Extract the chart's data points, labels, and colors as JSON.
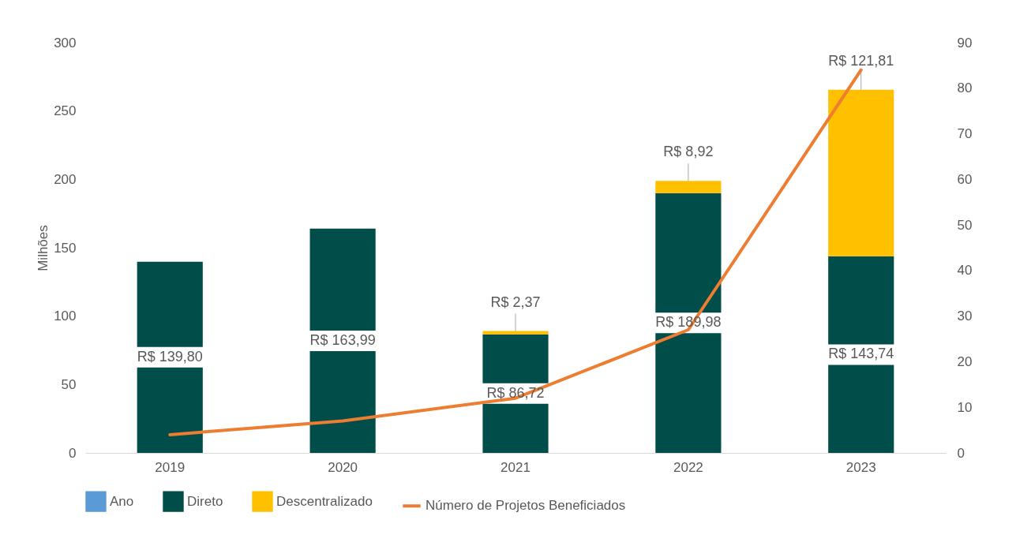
{
  "chart_data": {
    "type": "bar",
    "stacked": true,
    "ylabel": "Milhões",
    "categories": [
      "2019",
      "2020",
      "2021",
      "2022",
      "2023"
    ],
    "ylim": [
      0,
      300
    ],
    "yticks": [
      0,
      50,
      100,
      150,
      200,
      250,
      300
    ],
    "y2lim": [
      0,
      90
    ],
    "y2ticks": [
      0,
      10,
      20,
      30,
      40,
      50,
      60,
      70,
      80,
      90
    ],
    "legend": "bottom",
    "grid": false,
    "series": [
      {
        "name": "Ano",
        "color": "#5b9bd5",
        "values": [
          null,
          null,
          null,
          null,
          null
        ]
      },
      {
        "name": "Direto",
        "color": "#004d4a",
        "values": [
          139.8,
          163.99,
          86.72,
          189.98,
          143.74
        ],
        "value_labels": [
          "R$ 139,80",
          "R$ 163,99",
          "R$ 86,72",
          "R$ 189,98",
          "R$ 143,74"
        ]
      },
      {
        "name": "Descentralizado",
        "color": "#ffc000",
        "values": [
          null,
          null,
          2.37,
          8.92,
          121.81
        ],
        "value_labels": [
          null,
          null,
          "R$ 2,37",
          "R$ 8,92",
          "R$ 121,81"
        ]
      },
      {
        "name": "Número de Projetos Beneficiados",
        "type": "line",
        "axis": "y2",
        "color": "#ed7d31",
        "values": [
          4,
          7,
          12,
          27,
          84
        ]
      }
    ]
  }
}
